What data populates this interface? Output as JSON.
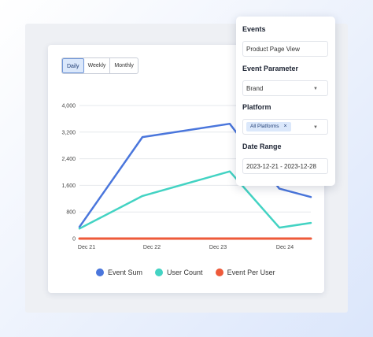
{
  "range_tabs": [
    "Daily",
    "Weekly",
    "Monthly"
  ],
  "active_tab": "Daily",
  "chart_data": {
    "type": "line",
    "y_ticks": [
      "4,000",
      "3,200",
      "2,400",
      "1,600",
      "800",
      "0"
    ],
    "x_ticks": [
      "Dec 21",
      "Dec 22",
      "Dec 23",
      "Dec 24"
    ],
    "ylim": [
      0,
      4000
    ],
    "grid": true,
    "legend_position": "bottom",
    "series": [
      {
        "name": "Event Sum",
        "color": "#4a76dc",
        "values": [
          350,
          3050,
          3450,
          1500,
          1250
        ]
      },
      {
        "name": "User Count",
        "color": "#43d3c3",
        "values": [
          300,
          1280,
          2020,
          330,
          470
        ]
      },
      {
        "name": "Event Per User",
        "color": "#ee5a3a",
        "values": [
          0,
          0,
          0,
          0,
          0
        ]
      }
    ]
  },
  "filters": {
    "events_label": "Events",
    "events_value": "Product Page View",
    "param_label": "Event Parameter",
    "param_value": "Brand",
    "platform_label": "Platform",
    "platform_chip": "All Platforms",
    "chip_remove": "×",
    "date_label": "Date Range",
    "date_value": "2023-12-21 - 2023-12-28",
    "caret": "▼"
  }
}
